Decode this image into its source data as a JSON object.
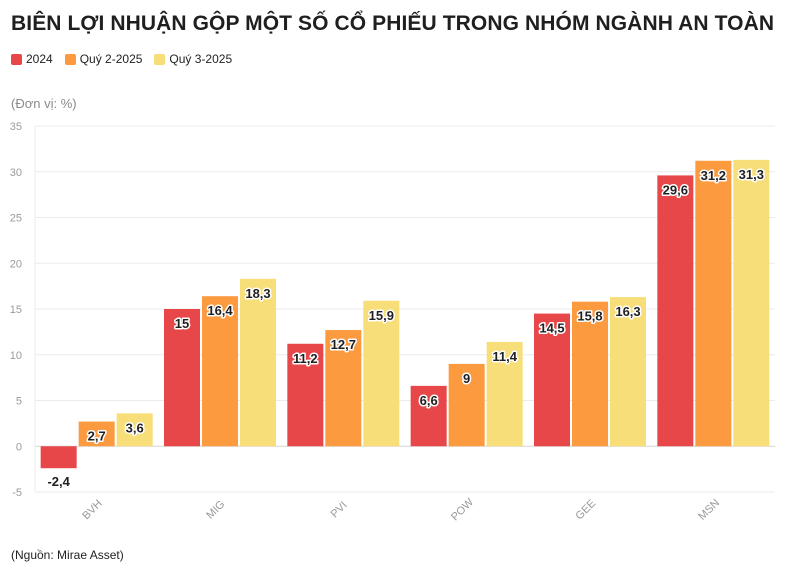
{
  "header": {
    "title": "BIÊN LỢI NHUẬN GỘP MỘT SỐ CỔ PHIẾU TRONG NHÓM NGÀNH AN TOÀN",
    "unit": "(Đơn vị: %)",
    "source": "(Nguồn: Mirae Asset)"
  },
  "chart_data": {
    "type": "bar",
    "title": "BIÊN LỢI NHUẬN GỘP MỘT SỐ CỔ PHIẾU TRONG NHÓM NGÀNH AN TOÀN",
    "ylabel": "(Đơn vị: %)",
    "xlabel": "",
    "categories": [
      "BVH",
      "MIG",
      "PVI",
      "POW",
      "GEE",
      "MSN"
    ],
    "ylim": [
      -5,
      35
    ],
    "yticks": [
      -5,
      0,
      5,
      10,
      15,
      20,
      25,
      30,
      35
    ],
    "grid": true,
    "legend_position": "top-left",
    "series": [
      {
        "name": "2024",
        "color": "#e8474a",
        "values": [
          -2.4,
          15,
          11.2,
          6.6,
          14.5,
          29.6
        ],
        "labels": [
          "-2,4",
          "15",
          "11,2",
          "6,6",
          "14,5",
          "29,6"
        ]
      },
      {
        "name": "Quý 2-2025",
        "color": "#fb9a3f",
        "values": [
          2.7,
          16.4,
          12.7,
          9,
          15.8,
          31.2
        ],
        "labels": [
          "2,7",
          "16,4",
          "12,7",
          "9",
          "15,8",
          "31,2"
        ]
      },
      {
        "name": "Quý 3-2025",
        "color": "#f7de78",
        "values": [
          3.6,
          18.3,
          15.9,
          11.4,
          16.3,
          31.3
        ],
        "labels": [
          "3,6",
          "18,3",
          "15,9",
          "11,4",
          "16,3",
          "31,3"
        ]
      }
    ]
  }
}
